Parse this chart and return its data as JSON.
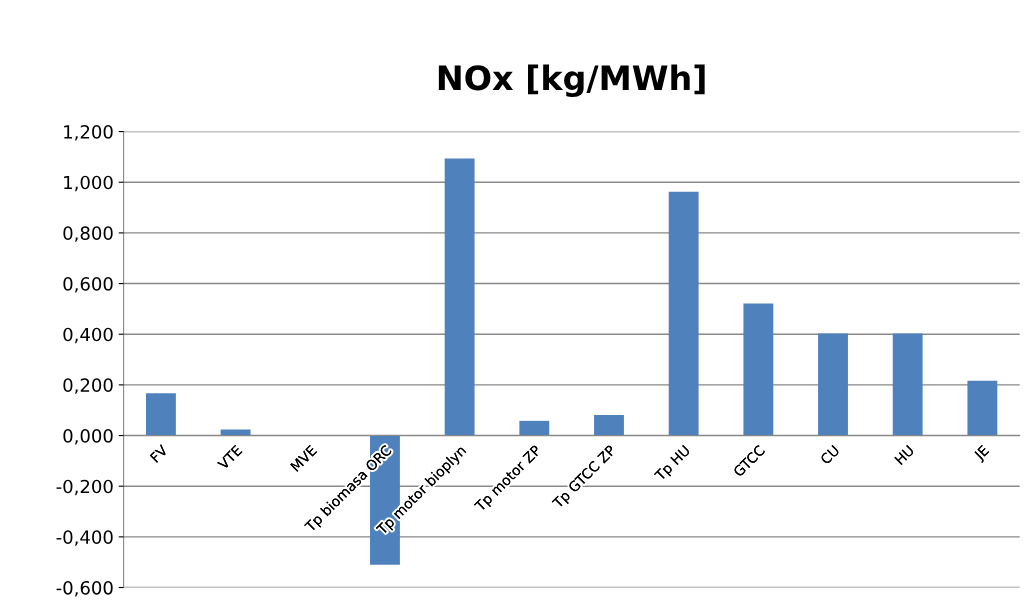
{
  "chart_data": {
    "type": "bar",
    "title": "NOx [kg/MWh]",
    "categories": [
      "FV",
      "VTE",
      "MVE",
      "Tp biomasa ORC",
      "Tp motor bioplyn",
      "Tp motor ZP",
      "Tp GTCC ZP",
      "Tp HU",
      "GTCC",
      "CU",
      "HU",
      "JE"
    ],
    "values": [
      0.167,
      0.024,
      0,
      -0.51,
      1.094,
      0.058,
      0.081,
      0.962,
      0.521,
      0.403,
      0.403,
      0.216
    ],
    "color": "#4f81bd",
    "ylim": [
      -0.6,
      1.2
    ],
    "yticks": [
      {
        "value": -0.6,
        "label": "-0,600"
      },
      {
        "value": -0.4,
        "label": "-0,400"
      },
      {
        "value": -0.2,
        "label": "-0,200"
      },
      {
        "value": 0,
        "label": "0,000"
      },
      {
        "value": 0.2,
        "label": "0,200"
      },
      {
        "value": 0.4,
        "label": "0,400"
      },
      {
        "value": 0.6,
        "label": "0,600"
      },
      {
        "value": 0.8,
        "label": "0,800"
      },
      {
        "value": 1.0,
        "label": "1,000"
      },
      {
        "value": 1.2,
        "label": "1,200"
      }
    ],
    "grid": "y",
    "legend": false
  }
}
